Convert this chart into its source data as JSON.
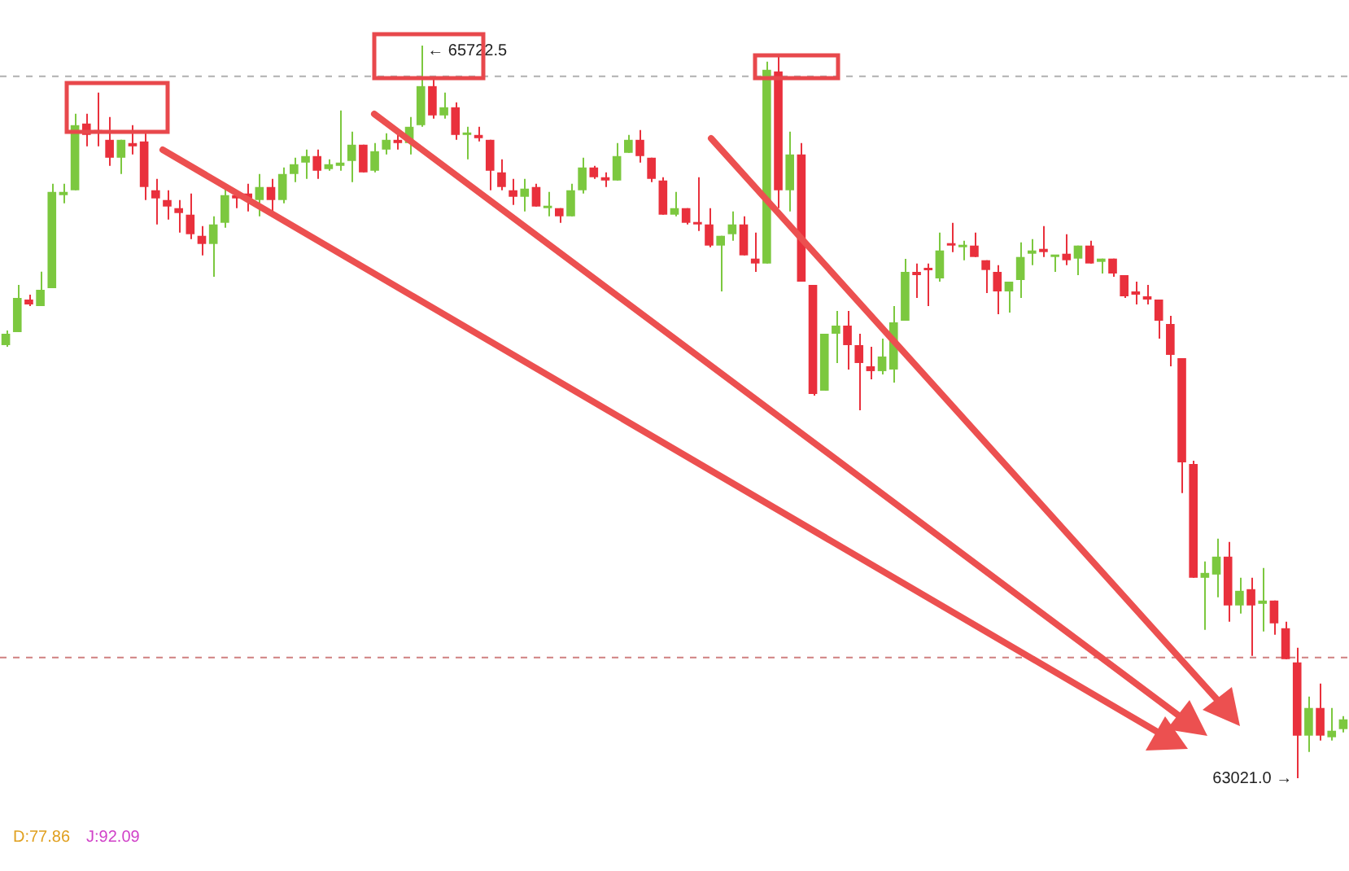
{
  "chart_data": {
    "type": "candlestick",
    "categories": [
      null,
      null,
      null,
      null,
      null,
      null,
      null,
      null,
      null,
      null,
      null,
      null,
      null,
      null,
      null,
      null,
      null,
      null,
      null,
      null,
      null,
      null,
      null,
      null,
      null,
      null,
      null,
      null,
      null,
      null,
      null,
      null,
      null,
      null,
      null,
      null,
      null,
      null,
      null,
      null,
      null,
      null,
      null,
      null,
      null,
      null,
      null,
      null,
      null,
      null,
      null,
      null,
      null,
      null,
      null,
      null,
      null,
      null,
      null,
      null,
      null,
      null,
      null,
      null,
      null,
      null,
      null,
      null,
      null,
      null,
      null,
      null,
      null,
      null,
      null,
      null,
      null,
      null,
      null,
      null,
      null,
      null,
      null,
      null,
      null,
      null,
      null,
      null,
      null,
      null,
      null,
      null,
      null,
      null,
      null,
      null,
      null,
      null,
      null,
      null,
      null,
      null,
      null,
      null,
      null,
      null,
      null,
      null,
      null,
      null,
      null,
      null,
      null,
      null,
      null,
      null,
      null
    ],
    "ohlc": [
      [
        64618,
        64672,
        64612,
        64660
      ],
      [
        64666,
        64840,
        64666,
        64792
      ],
      [
        64786,
        64804,
        64762,
        64768
      ],
      [
        64762,
        64889,
        64762,
        64822
      ],
      [
        64828,
        65213,
        64828,
        65183
      ],
      [
        65171,
        65213,
        65141,
        65183
      ],
      [
        65189,
        65471,
        65189,
        65429
      ],
      [
        65435,
        65471,
        65351,
        65393
      ],
      [
        65411,
        65549,
        65351,
        65399
      ],
      [
        65375,
        65459,
        65279,
        65309
      ],
      [
        65309,
        65375,
        65249,
        65375
      ],
      [
        65363,
        65429,
        65321,
        65351
      ],
      [
        65369,
        65399,
        65153,
        65201
      ],
      [
        65189,
        65231,
        65063,
        65159
      ],
      [
        65153,
        65189,
        65081,
        65129
      ],
      [
        65123,
        65153,
        65033,
        65105
      ],
      [
        65099,
        65177,
        65009,
        65027
      ],
      [
        65021,
        65057,
        64949,
        64991
      ],
      [
        64991,
        65093,
        64870,
        65063
      ],
      [
        65069,
        65195,
        65051,
        65171
      ],
      [
        65171,
        65189,
        65123,
        65159
      ],
      [
        65177,
        65213,
        65111,
        65159
      ],
      [
        65153,
        65249,
        65093,
        65201
      ],
      [
        65201,
        65231,
        65111,
        65153
      ],
      [
        65153,
        65273,
        65141,
        65249
      ],
      [
        65249,
        65309,
        65219,
        65285
      ],
      [
        65291,
        65339,
        65231,
        65315
      ],
      [
        65315,
        65339,
        65231,
        65261
      ],
      [
        65267,
        65303,
        65261,
        65285
      ],
      [
        65279,
        65483,
        65261,
        65291
      ],
      [
        65297,
        65405,
        65219,
        65357
      ],
      [
        65357,
        65357,
        65255,
        65255
      ],
      [
        65261,
        65363,
        65255,
        65333
      ],
      [
        65339,
        65399,
        65321,
        65375
      ],
      [
        65375,
        65393,
        65339,
        65363
      ],
      [
        65363,
        65459,
        65321,
        65423
      ],
      [
        65429,
        65722.5,
        65423,
        65573
      ],
      [
        65573,
        65603,
        65453,
        65465
      ],
      [
        65465,
        65549,
        65453,
        65495
      ],
      [
        65495,
        65513,
        65375,
        65393
      ],
      [
        65393,
        65423,
        65303,
        65399
      ],
      [
        65393,
        65423,
        65369,
        65381
      ],
      [
        65375,
        65375,
        65189,
        65261
      ],
      [
        65255,
        65303,
        65189,
        65201
      ],
      [
        65189,
        65231,
        65135,
        65165
      ],
      [
        65165,
        65231,
        65111,
        65195
      ],
      [
        65201,
        65213,
        65129,
        65129
      ],
      [
        65123,
        65183,
        65093,
        65129
      ],
      [
        65123,
        65123,
        65069,
        65093
      ],
      [
        65093,
        65213,
        65093,
        65189
      ],
      [
        65189,
        65309,
        65177,
        65273
      ],
      [
        65273,
        65279,
        65231,
        65237
      ],
      [
        65237,
        65255,
        65201,
        65225
      ],
      [
        65225,
        65363,
        65225,
        65315
      ],
      [
        65327,
        65393,
        65327,
        65375
      ],
      [
        65375,
        65411,
        65291,
        65315
      ],
      [
        65309,
        65309,
        65219,
        65231
      ],
      [
        65225,
        65237,
        65099,
        65099
      ],
      [
        65099,
        65183,
        65093,
        65123
      ],
      [
        65123,
        65123,
        65063,
        65069
      ],
      [
        65069,
        65237,
        65039,
        65063
      ],
      [
        65063,
        65123,
        64979,
        64985
      ],
      [
        64985,
        65021,
        64816,
        65021
      ],
      [
        65027,
        65111,
        65003,
        65063
      ],
      [
        65063,
        65093,
        64949,
        64949
      ],
      [
        64937,
        65033,
        64888,
        64919
      ],
      [
        64919,
        65663,
        64919,
        65633
      ],
      [
        65627,
        65681,
        65123,
        65189
      ],
      [
        65189,
        65405,
        65111,
        65321
      ],
      [
        65321,
        65363,
        64852,
        64852
      ],
      [
        64840,
        64840,
        64432,
        64438
      ],
      [
        64450,
        64660,
        64450,
        64660
      ],
      [
        64660,
        64744,
        64552,
        64690
      ],
      [
        64690,
        64744,
        64528,
        64618
      ],
      [
        64618,
        64660,
        64378,
        64552
      ],
      [
        64540,
        64612,
        64492,
        64522
      ],
      [
        64522,
        64642,
        64510,
        64576
      ],
      [
        64528,
        64762,
        64480,
        64702
      ],
      [
        64708,
        64936,
        64708,
        64888
      ],
      [
        64888,
        64919,
        64792,
        64876
      ],
      [
        64901,
        64919,
        64762,
        64894
      ],
      [
        64864,
        65033,
        64852,
        64967
      ],
      [
        64991,
        65069,
        64961,
        64985
      ],
      [
        64979,
        65003,
        64931,
        64985
      ],
      [
        64985,
        65033,
        64943,
        64943
      ],
      [
        64931,
        64931,
        64810,
        64895
      ],
      [
        64888,
        64913,
        64732,
        64816
      ],
      [
        64816,
        64852,
        64738,
        64852
      ],
      [
        64858,
        64997,
        64792,
        64943
      ],
      [
        64955,
        65009,
        64913,
        64967
      ],
      [
        64973,
        65057,
        64943,
        64961
      ],
      [
        64943,
        64949,
        64888,
        64949
      ],
      [
        64955,
        65027,
        64913,
        64931
      ],
      [
        64937,
        64985,
        64876,
        64985
      ],
      [
        64985,
        65003,
        64919,
        64919
      ],
      [
        64925,
        64937,
        64882,
        64937
      ],
      [
        64937,
        64937,
        64870,
        64882
      ],
      [
        64876,
        64876,
        64792,
        64798
      ],
      [
        64816,
        64852,
        64768,
        64804
      ],
      [
        64798,
        64840,
        64768,
        64786
      ],
      [
        64786,
        64786,
        64642,
        64708
      ],
      [
        64696,
        64726,
        64540,
        64582
      ],
      [
        64570,
        64570,
        64072,
        64186
      ],
      [
        64180,
        64192,
        63760,
        63760
      ],
      [
        63760,
        63820,
        63568,
        63778
      ],
      [
        63772,
        63904,
        63688,
        63838
      ],
      [
        63838,
        63892,
        63598,
        63658
      ],
      [
        63658,
        63760,
        63628,
        63712
      ],
      [
        63718,
        63760,
        63472,
        63658
      ],
      [
        63664,
        63796,
        63562,
        63676
      ],
      [
        63676,
        63676,
        63550,
        63592
      ],
      [
        63574,
        63598,
        63460,
        63460
      ],
      [
        63448,
        63502,
        63021.0,
        63178
      ],
      [
        63178,
        63322,
        63118,
        63280
      ],
      [
        63280,
        63370,
        63160,
        63178
      ],
      [
        63172,
        63280,
        63160,
        63196
      ],
      [
        63202,
        63250,
        63190,
        63238
      ]
    ],
    "colors": [
      "#7cc83f",
      "#7cc83f",
      "#e9303c",
      "#7cc83f",
      "#7cc83f",
      "#7cc83f",
      "#7cc83f",
      "#e9303c",
      "#e9303c",
      "#e9303c",
      "#7cc83f",
      "#e9303c",
      "#e9303c",
      "#e9303c",
      "#e9303c",
      "#e9303c",
      "#e9303c",
      "#e9303c",
      "#7cc83f",
      "#7cc83f",
      "#e9303c",
      "#e9303c",
      "#7cc83f",
      "#e9303c",
      "#7cc83f",
      "#7cc83f",
      "#7cc83f",
      "#e9303c",
      "#7cc83f",
      "#7cc83f",
      "#7cc83f",
      "#e9303c",
      "#7cc83f",
      "#7cc83f",
      "#e9303c",
      "#7cc83f",
      "#7cc83f",
      "#e9303c",
      "#7cc83f",
      "#e9303c",
      "#7cc83f",
      "#e9303c",
      "#e9303c",
      "#e9303c",
      "#e9303c",
      "#7cc83f",
      "#e9303c",
      "#7cc83f",
      "#e9303c",
      "#7cc83f",
      "#7cc83f",
      "#e9303c",
      "#e9303c",
      "#7cc83f",
      "#7cc83f",
      "#e9303c",
      "#e9303c",
      "#e9303c",
      "#7cc83f",
      "#e9303c",
      "#e9303c",
      "#e9303c",
      "#7cc83f",
      "#7cc83f",
      "#e9303c",
      "#e9303c",
      "#7cc83f",
      "#e9303c",
      "#7cc83f",
      "#e9303c",
      "#e9303c",
      "#7cc83f",
      "#7cc83f",
      "#e9303c",
      "#e9303c",
      "#e9303c",
      "#7cc83f",
      "#7cc83f",
      "#7cc83f",
      "#e9303c",
      "#e9303c",
      "#7cc83f",
      "#e9303c",
      "#7cc83f",
      "#e9303c",
      "#e9303c",
      "#e9303c",
      "#7cc83f",
      "#7cc83f",
      "#7cc83f",
      "#e9303c",
      "#7cc83f",
      "#e9303c",
      "#7cc83f",
      "#e9303c",
      "#7cc83f",
      "#e9303c",
      "#e9303c",
      "#e9303c",
      "#e9303c",
      "#e9303c",
      "#e9303c",
      "#e9303c",
      "#e9303c",
      "#7cc83f",
      "#7cc83f",
      "#e9303c",
      "#7cc83f",
      "#e9303c",
      "#7cc83f",
      "#e9303c",
      "#e9303c",
      "#e9303c",
      "#7cc83f",
      "#e9303c",
      "#7cc83f",
      "#7cc83f"
    ],
    "ref_lines": [
      {
        "axis": "y",
        "value": 65609,
        "color": "#b0b0b0",
        "line_style": "dashed"
      },
      {
        "axis": "y",
        "value": 63466,
        "color": "#d08080",
        "line_style": "dashed"
      }
    ],
    "annotations": [
      "← 65722.5",
      "63021.0 →",
      "D:77.86",
      "J:92.09"
    ]
  }
}
